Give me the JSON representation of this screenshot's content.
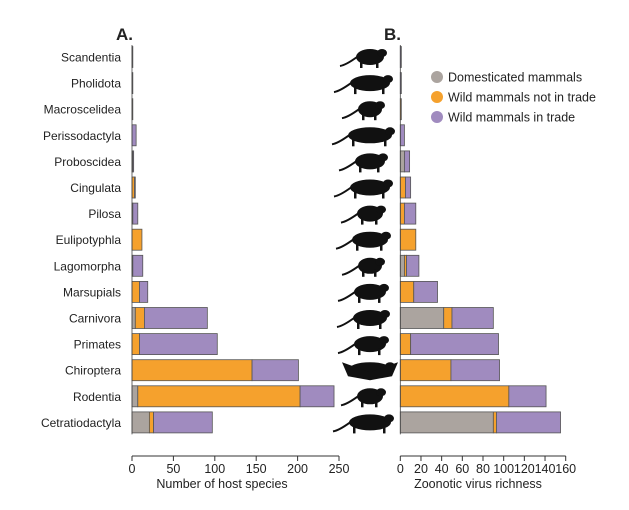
{
  "colors": {
    "domesticated": "#aba49f",
    "wild_not_traded": "#f5a12d",
    "wild_traded": "#a08bbf",
    "outline": "#555555",
    "silhouette": "#111111"
  },
  "chart_data": [
    {
      "type": "bar",
      "orientation": "horizontal",
      "stacked": true,
      "panel_label": "A.",
      "xlabel": "Number of host species",
      "xlim": [
        0,
        250
      ],
      "xticks": [
        "0",
        "50",
        "100",
        "150",
        "200",
        "250"
      ],
      "categories": [
        "Scandentia",
        "Pholidota",
        "Macroscelidea",
        "Perissodactyla",
        "Proboscidea",
        "Cingulata",
        "Pilosa",
        "Eulipotyphla",
        "Lagomorpha",
        "Marsupials",
        "Carnivora",
        "Primates",
        "Chiroptera",
        "Rodentia",
        "Cetratiodactyla"
      ],
      "series": [
        {
          "name": "Domesticated mammals",
          "values": [
            0,
            0,
            0,
            0,
            1,
            0,
            0,
            0,
            1,
            0,
            4,
            0,
            0,
            7,
            21
          ]
        },
        {
          "name": "Wild mammals not in trade",
          "values": [
            0,
            0,
            1,
            0,
            0,
            3,
            1,
            12,
            0,
            9,
            11,
            9,
            145,
            196,
            5
          ]
        },
        {
          "name": "Wild mammals in trade",
          "values": [
            1,
            1,
            0,
            5,
            1,
            1,
            6,
            0,
            12,
            10,
            76,
            94,
            56,
            41,
            71
          ]
        }
      ]
    },
    {
      "type": "bar",
      "orientation": "horizontal",
      "stacked": true,
      "panel_label": "B.",
      "xlabel": "Zoonotic virus richness",
      "xlim": [
        0,
        160
      ],
      "xticks": [
        "0",
        "20",
        "40",
        "60",
        "80",
        "100",
        "120",
        "140",
        "160"
      ],
      "categories": [
        "Scandentia",
        "Pholidota",
        "Macroscelidea",
        "Perissodactyla",
        "Proboscidea",
        "Cingulata",
        "Pilosa",
        "Eulipotyphla",
        "Lagomorpha",
        "Marsupials",
        "Carnivora",
        "Primates",
        "Chiroptera",
        "Rodentia",
        "Cetratiodactyla"
      ],
      "series": [
        {
          "name": "Domesticated mammals",
          "values": [
            0,
            0,
            0,
            0,
            4,
            0,
            0,
            0,
            4,
            0,
            42,
            0,
            0,
            0,
            90
          ]
        },
        {
          "name": "Wild mammals not in trade",
          "values": [
            0,
            0,
            1,
            0,
            0,
            5,
            4,
            15,
            2,
            13,
            8,
            10,
            49,
            105,
            3
          ]
        },
        {
          "name": "Wild mammals in trade",
          "values": [
            1,
            1,
            0,
            4,
            5,
            5,
            11,
            0,
            12,
            23,
            40,
            85,
            47,
            36,
            62
          ]
        }
      ]
    }
  ],
  "legend": {
    "placement": "top-right",
    "items": [
      "Domesticated mammals",
      "Wild mammals not in trade",
      "Wild mammals in trade"
    ]
  },
  "icons": [
    "treeshrew-silhouette-icon",
    "pangolin-silhouette-icon",
    "elephant-shrew-silhouette-icon",
    "rhinoceros-silhouette-icon",
    "elephant-silhouette-icon",
    "armadillo-silhouette-icon",
    "sloth-silhouette-icon",
    "hedgehog-silhouette-icon",
    "hare-silhouette-icon",
    "kangaroo-silhouette-icon",
    "wolf-silhouette-icon",
    "monkey-silhouette-icon",
    "bat-silhouette-icon",
    "rat-silhouette-icon",
    "cow-silhouette-icon"
  ]
}
